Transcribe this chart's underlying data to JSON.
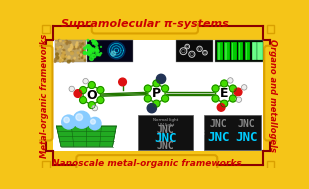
{
  "title_top": "Supramolecular π-systems",
  "title_bottom": "Nanoscale metal-organic frameworks",
  "label_left": "Metal-organic frameworks",
  "label_right": "Organo and metallogels",
  "border_line_color": "#8B0000",
  "label_bg": "#F5C518",
  "label_border": "#DAA000",
  "text_color": "#CC0000",
  "bg_color": "#F5C518",
  "inner_bg": "#FFFFFF",
  "molecule_label_O": "O",
  "molecule_label_P": "P",
  "molecule_label_E": "E",
  "green_atom": "#44DD00",
  "red_atom": "#DD1111",
  "white_atom": "#EEEEEE",
  "dark_atom": "#223355",
  "fig_width": 3.09,
  "fig_height": 1.89,
  "dpi": 100
}
